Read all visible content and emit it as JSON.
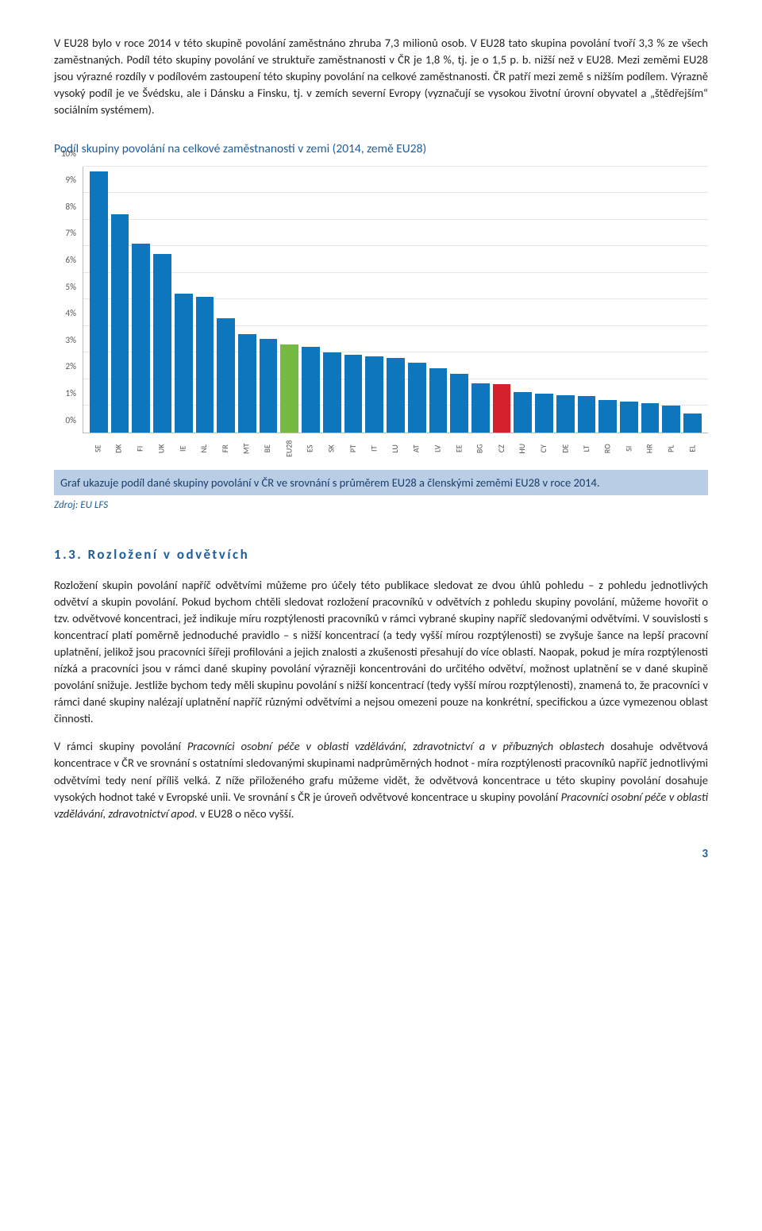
{
  "para1": "V EU28 bylo v roce 2014 v této skupině povolání zaměstnáno zhruba 7,3 milionů osob. V EU28 tato skupina povolání tvoří 3,3 % ze všech zaměstnaných. Podíl této skupiny povolání ve struktuře zaměstnanosti v ČR je 1,8 %, tj. je o 1,5 p. b. nižší než v EU28. Mezi zeměmi EU28 jsou výrazné rozdíly v podílovém zastoupení této skupiny povolání na celkové zaměstnanosti. ČR patří mezi země s nižším podílem. Výrazně vysoký podíl je ve Švédsku, ale i Dánsku a Finsku, tj. v zemích severní Evropy (vyznačují se vysokou životní úrovní obyvatel a „štědřejším“ sociálním systémem).",
  "chart": {
    "title": "Podíl skupiny povolání na celkové zaměstnanosti v zemi (2014, země EU28)",
    "ymax": 10,
    "yticks": [
      "0%",
      "1%",
      "2%",
      "3%",
      "4%",
      "5%",
      "6%",
      "7%",
      "8%",
      "9%",
      "10%"
    ],
    "bar_color": "#0e76bc",
    "highlight_color": "#d3212d",
    "eu_color": "#76b943",
    "grid_color": "#e6e6e6",
    "series": [
      {
        "label": "SE",
        "value": 9.8,
        "color": "#0e76bc"
      },
      {
        "label": "DK",
        "value": 8.2,
        "color": "#0e76bc"
      },
      {
        "label": "FI",
        "value": 7.1,
        "color": "#0e76bc"
      },
      {
        "label": "UK",
        "value": 6.7,
        "color": "#0e76bc"
      },
      {
        "label": "IE",
        "value": 5.2,
        "color": "#0e76bc"
      },
      {
        "label": "NL",
        "value": 5.1,
        "color": "#0e76bc"
      },
      {
        "label": "FR",
        "value": 4.3,
        "color": "#0e76bc"
      },
      {
        "label": "MT",
        "value": 3.7,
        "color": "#0e76bc"
      },
      {
        "label": "BE",
        "value": 3.5,
        "color": "#0e76bc"
      },
      {
        "label": "EU28",
        "value": 3.3,
        "color": "#76b943"
      },
      {
        "label": "ES",
        "value": 3.2,
        "color": "#0e76bc"
      },
      {
        "label": "SK",
        "value": 3.0,
        "color": "#0e76bc"
      },
      {
        "label": "PT",
        "value": 2.9,
        "color": "#0e76bc"
      },
      {
        "label": "IT",
        "value": 2.85,
        "color": "#0e76bc"
      },
      {
        "label": "LU",
        "value": 2.8,
        "color": "#0e76bc"
      },
      {
        "label": "AT",
        "value": 2.6,
        "color": "#0e76bc"
      },
      {
        "label": "LV",
        "value": 2.4,
        "color": "#0e76bc"
      },
      {
        "label": "EE",
        "value": 2.2,
        "color": "#0e76bc"
      },
      {
        "label": "BG",
        "value": 1.85,
        "color": "#0e76bc"
      },
      {
        "label": "CZ",
        "value": 1.8,
        "color": "#d3212d"
      },
      {
        "label": "HU",
        "value": 1.5,
        "color": "#0e76bc"
      },
      {
        "label": "CY",
        "value": 1.45,
        "color": "#0e76bc"
      },
      {
        "label": "DE",
        "value": 1.4,
        "color": "#0e76bc"
      },
      {
        "label": "LT",
        "value": 1.35,
        "color": "#0e76bc"
      },
      {
        "label": "RO",
        "value": 1.2,
        "color": "#0e76bc"
      },
      {
        "label": "SI",
        "value": 1.15,
        "color": "#0e76bc"
      },
      {
        "label": "HR",
        "value": 1.1,
        "color": "#0e76bc"
      },
      {
        "label": "PL",
        "value": 1.0,
        "color": "#0e76bc"
      },
      {
        "label": "EL",
        "value": 0.7,
        "color": "#0e76bc"
      }
    ]
  },
  "caption": "Graf ukazuje podíl dané skupiny povolání v ČR ve srovnání s průměrem EU28 a členskými zeměmi EU28 v roce 2014.",
  "source": "Zdroj: EU LFS",
  "section_heading": "1.3.  Rozložení v odvětvích",
  "para2": "Rozložení skupin povolání napříč odvětvími můžeme pro účely této publikace sledovat ze dvou úhlů pohledu – z pohledu jednotlivých odvětví a skupin povolání. Pokud bychom chtěli sledovat rozložení pracovníků v odvětvích z pohledu skupiny povolání, můžeme hovořit o tzv. odvětvové koncentraci, jež indikuje míru rozptýlenosti pracovníků v rámci vybrané skupiny napříč sledovanými odvětvími. V souvislosti s koncentrací platí poměrně jednoduché pravidlo – s nižší koncentrací (a tedy vyšší mírou rozptýlenosti) se zvyšuje šance na lepší pracovní uplatnění, jelikož jsou pracovníci šířeji profilováni a jejich znalosti a zkušenosti přesahují do více oblastí. Naopak, pokud je míra rozptýlenosti nízká a pracovníci jsou v rámci dané skupiny povolání výrazněji koncentrováni do určitého odvětví, možnost uplatnění se v dané skupině povolání snižuje. Jestliže bychom tedy měli skupinu povolání s nižší koncentrací (tedy vyšší mírou rozptýlenosti), znamená to, že pracovníci v rámci dané skupiny nalézají uplatnění napříč různými odvětvími a nejsou omezeni pouze na konkrétní, specifickou a úzce vymezenou oblast činnosti.",
  "para3_pre": "V rámci skupiny povolání ",
  "para3_it1": "Pracovníci osobní péče v oblasti vzdělávání, zdravotnictví a v příbuzných oblastech",
  "para3_mid": " dosahuje odvětvová koncentrace v ČR ve srovnání s ostatními sledovanými skupinami nadprůměrných hodnot - míra rozptýlenosti pracovníků napříč jednotlivými odvětvími tedy není příliš velká. Z níže přiloženého grafu můžeme vidět, že odvětvová koncentrace u této skupiny povolání dosahuje vysokých hodnot také v Evropské unii. Ve srovnání s ČR je úroveň odvětvové koncentrace u skupiny povolání ",
  "para3_it2": "Pracovníci osobní péče v oblasti vzdělávání, zdravotnictví apod.",
  "para3_end": " v EU28 o něco vyšší.",
  "page_number": "3"
}
